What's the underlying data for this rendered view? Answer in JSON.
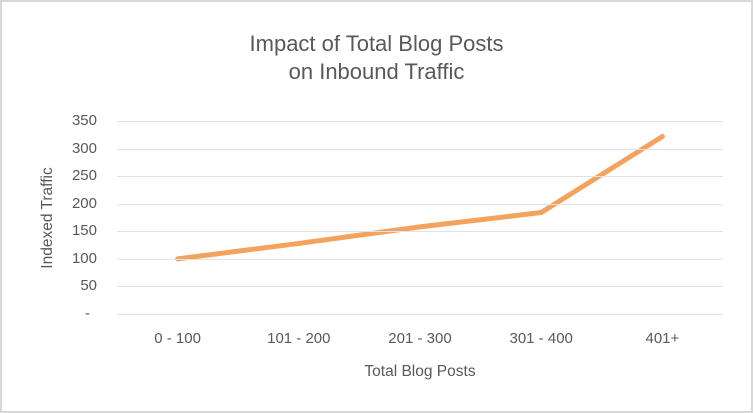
{
  "window": {
    "background": "#FFFFFF",
    "border_color": "#D8D8D8"
  },
  "chart_data": {
    "type": "line",
    "title": "Impact of Total Blog Posts on Inbound Traffic",
    "title_lines": [
      "Impact of Total Blog Posts",
      "on Inbound Traffic"
    ],
    "xlabel": "Total Blog Posts",
    "ylabel": "Indexed Traffic",
    "categories": [
      "0 - 100",
      "101 - 200",
      "201 - 300",
      "301 - 400",
      "401+"
    ],
    "series": [
      {
        "name": "Indexed Traffic",
        "color": "#F4A35F",
        "values": [
          100,
          128,
          158,
          184,
          322
        ]
      }
    ],
    "ylim": [
      0,
      350
    ],
    "ytick_step": 50,
    "ytick_labels_top_to_bottom": [
      "350",
      "300",
      "250",
      "200",
      "150",
      "100",
      "50",
      "-"
    ],
    "zero_shown_as": "-",
    "grid": true,
    "legend": "none",
    "markers": "none",
    "line_width": 5,
    "colors": {
      "line": "#F4A35F",
      "text": "#595959",
      "gridline": "#E2E2E2"
    }
  }
}
